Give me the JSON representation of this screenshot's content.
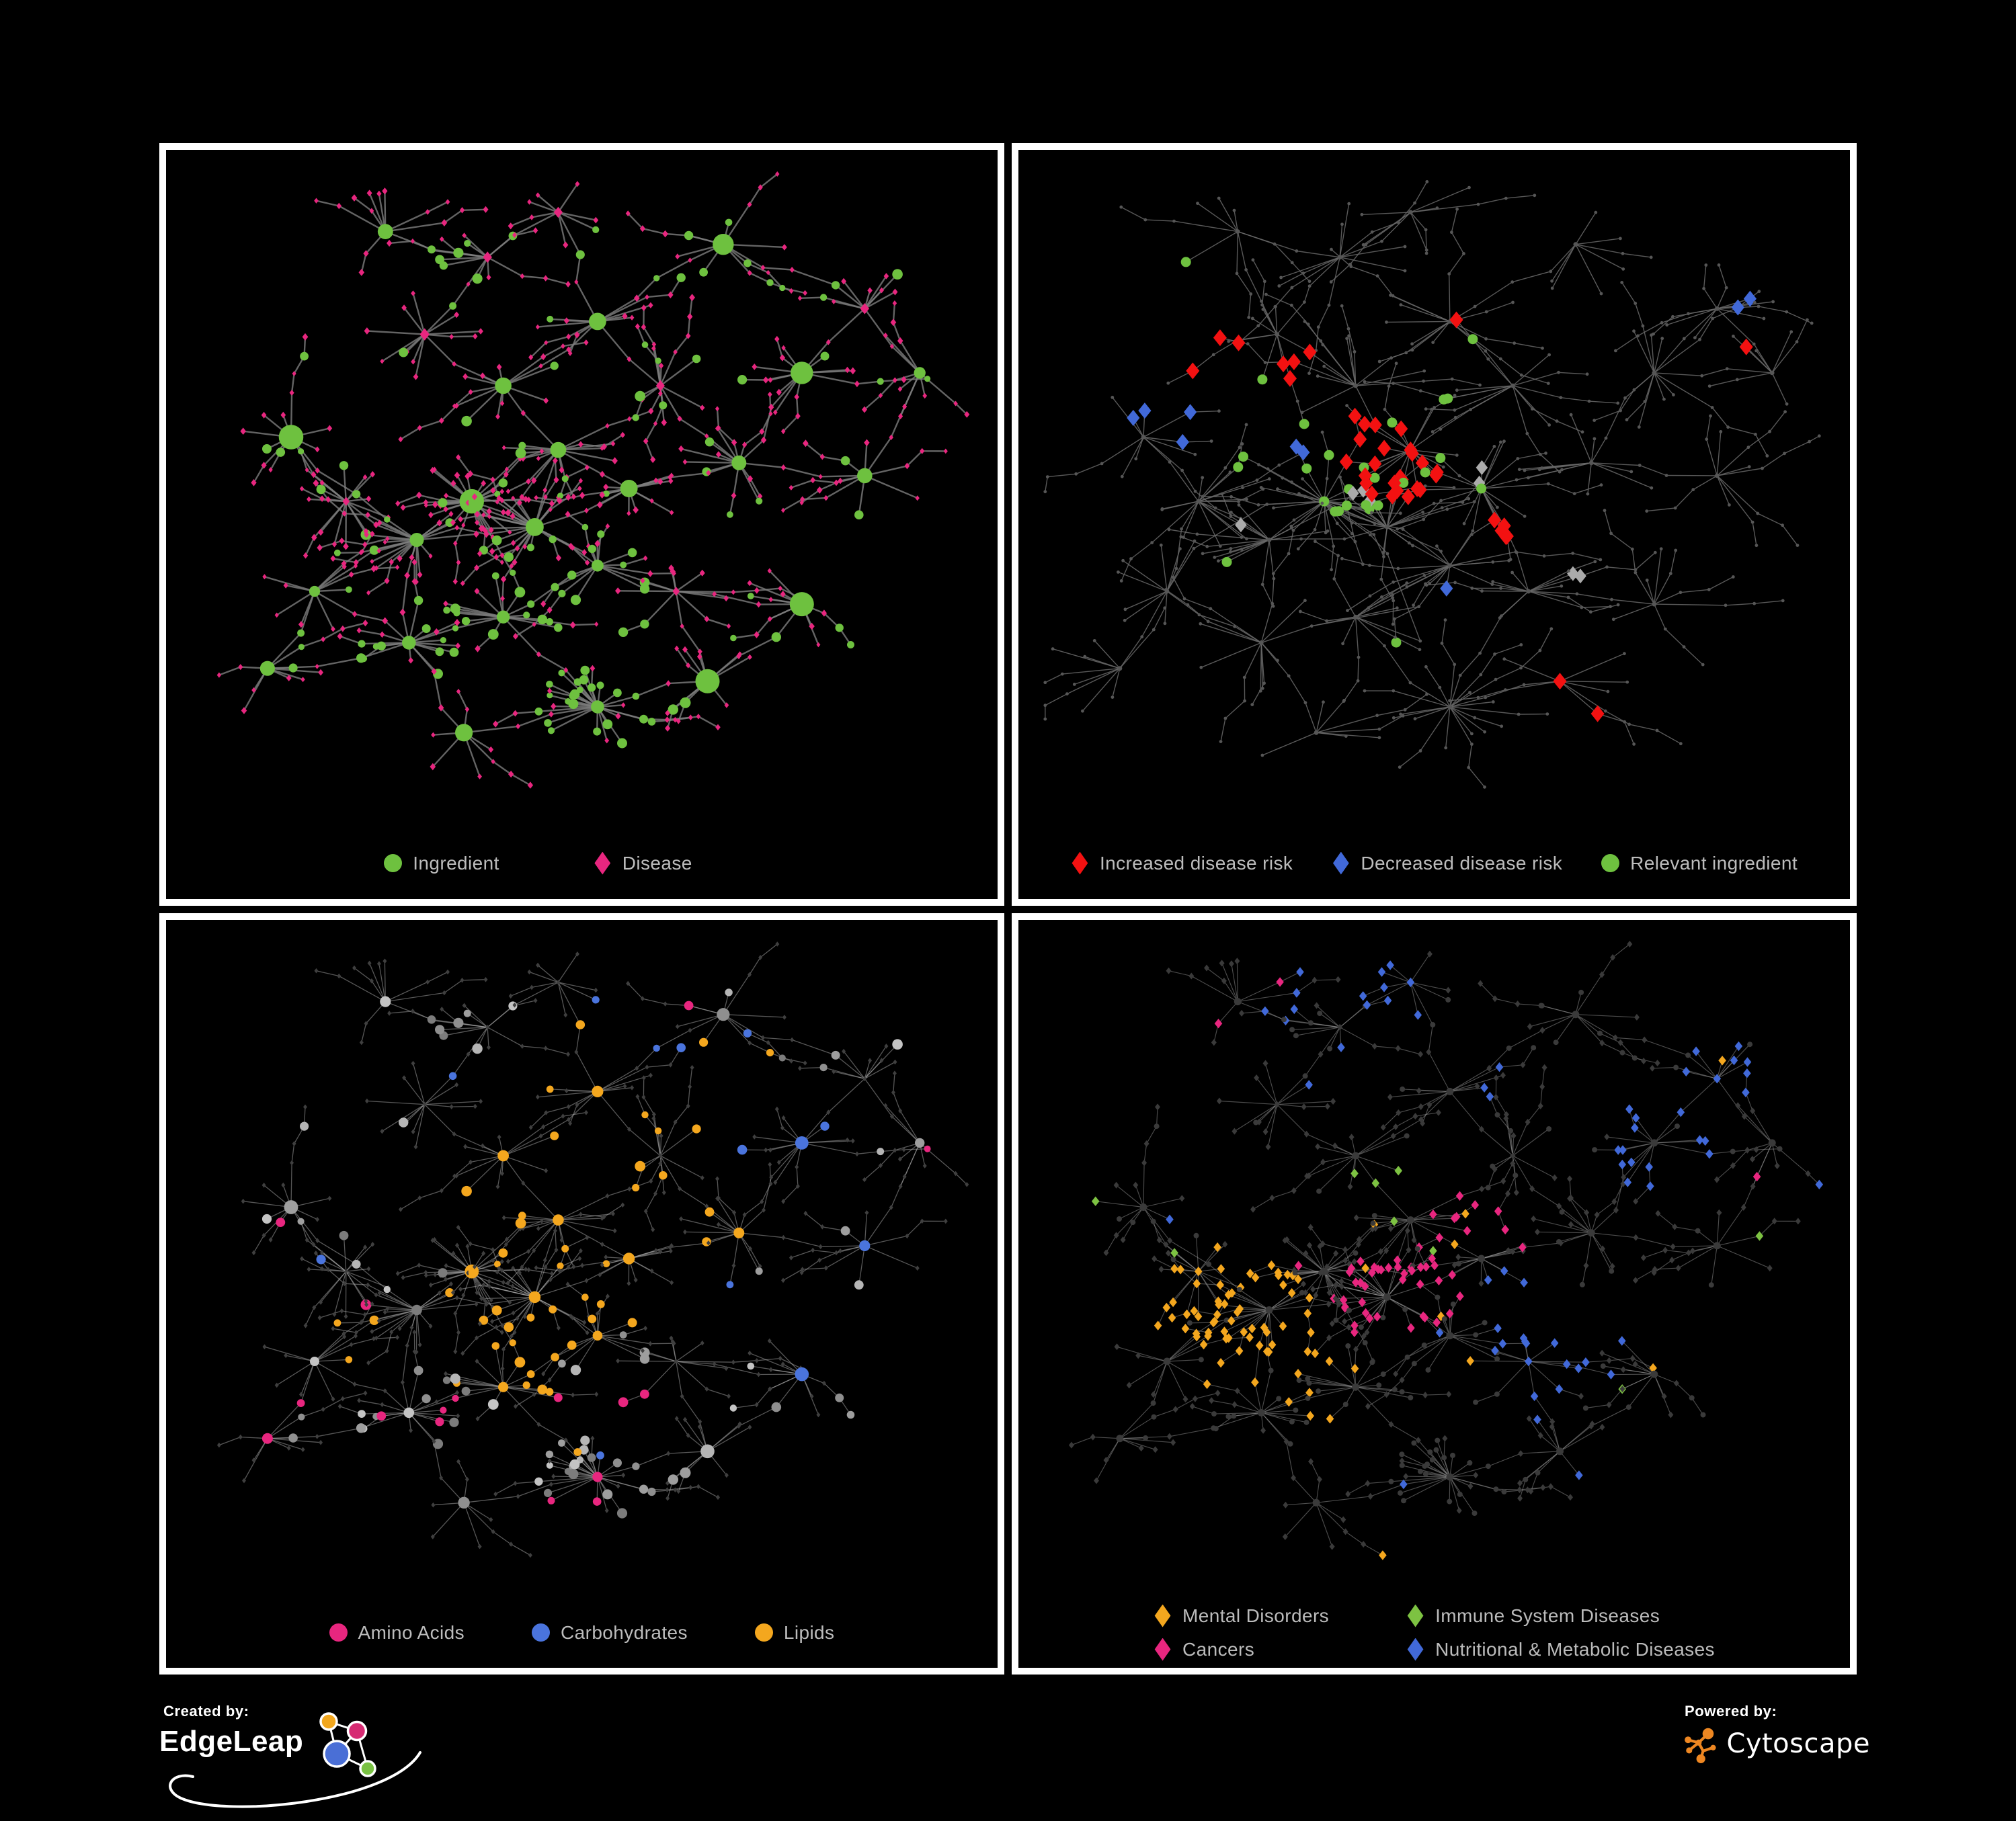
{
  "figure": {
    "background": "#000000",
    "panel_border_color": "#ffffff",
    "legend_text_color": "#bcbcbc"
  },
  "panels": [
    {
      "name": "ingredient-disease-network",
      "legend": [
        {
          "shape": "circle",
          "color": "#6ec13f",
          "label": "Ingredient"
        },
        {
          "shape": "diamond",
          "color": "#e8267f",
          "label": "Disease"
        }
      ]
    },
    {
      "name": "disease-risk-network",
      "legend": [
        {
          "shape": "diamond",
          "color": "#f31111",
          "label": "Increased disease risk"
        },
        {
          "shape": "diamond",
          "color": "#4169d9",
          "label": "Decreased disease risk"
        },
        {
          "shape": "circle",
          "color": "#6ec13f",
          "label": "Relevant ingredient"
        }
      ]
    },
    {
      "name": "ingredient-class-network",
      "legend": [
        {
          "shape": "circle",
          "color": "#e8267f",
          "label": "Amino Acids"
        },
        {
          "shape": "circle",
          "color": "#4a74dd",
          "label": "Carbohydrates"
        },
        {
          "shape": "circle",
          "color": "#f4a71e",
          "label": "Lipids"
        }
      ]
    },
    {
      "name": "disease-class-network",
      "legend": [
        {
          "shape": "diamond",
          "color": "#f4a71e",
          "label": "Mental Disorders"
        },
        {
          "shape": "diamond",
          "color": "#7dc242",
          "label": "Immune System Diseases"
        },
        {
          "shape": "diamond",
          "color": "#e8267f",
          "label": "Cancers"
        },
        {
          "shape": "diamond",
          "color": "#4169d9",
          "label": "Nutritional & Metabolic Diseases"
        }
      ]
    }
  ],
  "credits": {
    "created_by_label": "Created by:",
    "created_by_name": "EdgeLeap",
    "powered_by_label": "Powered by:",
    "powered_by_name": "Cytoscape",
    "cytoscape_orange": "#ee8722",
    "edgeleap_node_colors": [
      "#f2a71e",
      "#d62a72",
      "#4a6fd6",
      "#79c143"
    ]
  },
  "network_style": {
    "panel1": {
      "edge": {
        "color": "#7d7d7d",
        "width": 2.4,
        "opacity": 0.8
      },
      "ingredient_color": "#6ec13f",
      "disease_color": "#e8267f"
    },
    "panel2": {
      "edge": {
        "color": "#696969",
        "width": 1.4,
        "opacity": 0.85
      },
      "dim_color": "#565656",
      "increased_color": "#f31111",
      "decreased_color": "#4169d9",
      "neutral_color": "#ababab",
      "relevant_color": "#6ec13f"
    },
    "panel3": {
      "edge": {
        "color": "#aeaeae",
        "width": 1.3,
        "opacity": 0.5
      },
      "disease_color": "#3f3f3f",
      "ingredient_grays": [
        "#8f8f8f",
        "#9e9e9e",
        "#b5b5b5",
        "#c4c4c4",
        "#7c7c7c"
      ],
      "amino_color": "#e8267f",
      "carb_color": "#4a74dd",
      "lipid_color": "#f4a71e"
    },
    "panel4": {
      "edge": {
        "color": "#989898",
        "width": 1.15,
        "opacity": 0.5
      },
      "dim_color": "#3a3a3a",
      "mental_color": "#f4a71e",
      "immune_color": "#7dc242",
      "cancer_color": "#e8267f",
      "nutri_color": "#4169d9"
    }
  }
}
